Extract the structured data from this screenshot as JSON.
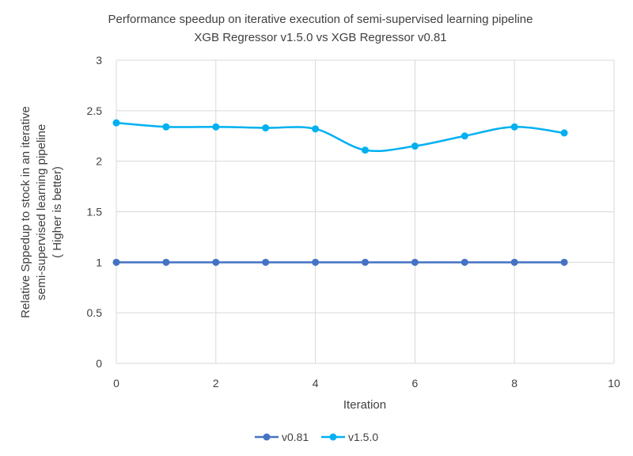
{
  "chart_data": {
    "type": "line",
    "title": "Performance speedup on iterative execution of semi-supervised learning pipeline",
    "subtitle": "XGB Regressor v1.5.0 vs XGB Regressor v0.81",
    "xlabel": "Iteration",
    "ylabel_lines": [
      "Relative Sppedup to stock in an iterative",
      "semi-supervised learning pipeline",
      "( Higher is better)"
    ],
    "xlim": [
      0,
      10
    ],
    "ylim": [
      0,
      3
    ],
    "xticks": [
      0,
      2,
      4,
      6,
      8,
      10
    ],
    "yticks": [
      0,
      0.5,
      1,
      1.5,
      2,
      2.5,
      3
    ],
    "grid": true,
    "legend_position": "bottom",
    "x": [
      0,
      1,
      2,
      3,
      4,
      5,
      6,
      7,
      8,
      9
    ],
    "series": [
      {
        "name": "v0.81",
        "color": "#4472c4",
        "smooth": false,
        "values": [
          1,
          1,
          1,
          1,
          1,
          1,
          1,
          1,
          1,
          1
        ]
      },
      {
        "name": "v1.5.0",
        "color": "#00b0f0",
        "smooth": true,
        "values": [
          2.38,
          2.34,
          2.34,
          2.33,
          2.32,
          2.11,
          2.15,
          2.25,
          2.34,
          2.28
        ]
      }
    ]
  }
}
